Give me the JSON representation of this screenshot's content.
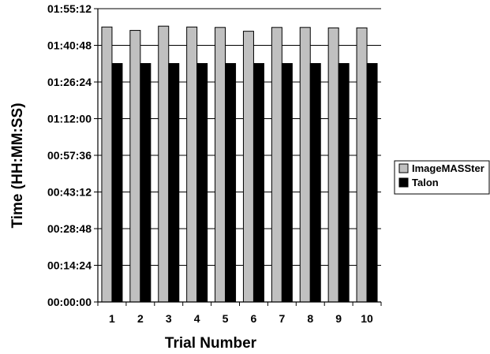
{
  "chart_data": {
    "type": "bar",
    "title": "",
    "xlabel": "Trial Number",
    "ylabel": "Time (HH:MM:SS)",
    "categories": [
      "1",
      "2",
      "3",
      "4",
      "5",
      "6",
      "7",
      "8",
      "9",
      "10"
    ],
    "y_unit": "seconds",
    "ylim": [
      0,
      6912
    ],
    "y_ticks": [
      0,
      864,
      1728,
      2592,
      3456,
      4320,
      5184,
      6048,
      6912
    ],
    "y_tick_labels": [
      "00:00:00",
      "00:14:24",
      "00:28:48",
      "00:43:12",
      "00:57:36",
      "01:12:00",
      "01:26:24",
      "01:40:48",
      "01:55:12"
    ],
    "grid": true,
    "legend": "right",
    "series": [
      {
        "name": "ImageMASSter",
        "color": "#c0c0c0",
        "values": [
          6480,
          6400,
          6500,
          6480,
          6470,
          6380,
          6470,
          6470,
          6460,
          6460
        ]
      },
      {
        "name": "Talon",
        "color": "#000000",
        "values": [
          5620,
          5620,
          5620,
          5620,
          5620,
          5620,
          5620,
          5620,
          5620,
          5620
        ]
      }
    ]
  }
}
